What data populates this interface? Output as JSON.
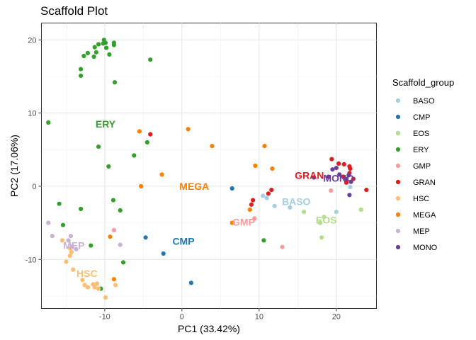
{
  "chart_data": {
    "type": "scatter",
    "title": "Scaffold Plot",
    "xlabel": "PC1 (33.42%)",
    "ylabel": "PC2 (17.06%)",
    "xlim": [
      -18.2,
      25.2
    ],
    "ylim": [
      -16.7,
      22.3
    ],
    "xticks": [
      -10,
      0,
      10,
      20
    ],
    "yticks": [
      -10,
      0,
      10,
      20
    ],
    "xtick_labels": [
      "-10",
      "0",
      "10",
      "20"
    ],
    "ytick_labels": [
      "-10",
      "0",
      "10",
      "20"
    ],
    "grid": true,
    "legend": {
      "title": "Scaffold_group",
      "position": "right"
    },
    "series": [
      {
        "name": "BASO",
        "color": "#a6cee3",
        "points": [
          [
            10.5,
            -1.3
          ],
          [
            11.0,
            -1.6
          ],
          [
            12.0,
            -2.7
          ],
          [
            14.0,
            -2.9
          ],
          [
            20.0,
            -3.5
          ],
          [
            21.8,
            -0.1
          ]
        ]
      },
      {
        "name": "CMP",
        "color": "#1f78b4",
        "points": [
          [
            6.5,
            -0.3
          ],
          [
            -4.7,
            -7.0
          ],
          [
            -2.4,
            -9.2
          ],
          [
            1.2,
            -13.2
          ]
        ]
      },
      {
        "name": "EOS",
        "color": "#b2df8a",
        "points": [
          [
            18.4,
            -4.2
          ],
          [
            15.8,
            -3.5
          ],
          [
            17.9,
            -5.0
          ],
          [
            18.1,
            -7.0
          ],
          [
            23.2,
            -3.2
          ]
        ]
      },
      {
        "name": "ERY",
        "color": "#33a02c",
        "points": [
          [
            -10.2,
            19.5
          ],
          [
            -10.1,
            20.0
          ],
          [
            -9.9,
            19.6
          ],
          [
            -8.8,
            19.6
          ],
          [
            -8.8,
            19.3
          ],
          [
            -10.8,
            19.4
          ],
          [
            -11.3,
            19.0
          ],
          [
            -9.8,
            18.9
          ],
          [
            -12.2,
            18.2
          ],
          [
            -11.1,
            18.3
          ],
          [
            -11.4,
            17.7
          ],
          [
            -12.7,
            17.8
          ],
          [
            -9.4,
            18.0
          ],
          [
            -13.1,
            16.0
          ],
          [
            -13.1,
            15.1
          ],
          [
            -4.1,
            17.3
          ],
          [
            -8.7,
            14.2
          ],
          [
            -17.3,
            8.7
          ],
          [
            -10.8,
            5.4
          ],
          [
            -4.5,
            6.0
          ],
          [
            -6.2,
            4.2
          ],
          [
            -9.5,
            2.7
          ],
          [
            -15.9,
            -2.4
          ],
          [
            -8.9,
            -1.9
          ],
          [
            -13.1,
            -3.1
          ],
          [
            -8.0,
            -3.3
          ],
          [
            -15.4,
            -5.3
          ],
          [
            -11.8,
            -8.1
          ],
          [
            -7.6,
            -10.4
          ],
          [
            -10.5,
            -14.0
          ],
          [
            10.6,
            -7.4
          ]
        ]
      },
      {
        "name": "GMP",
        "color": "#fb9a99",
        "points": [
          [
            -8.8,
            -6.0
          ],
          [
            9.4,
            -4.4
          ],
          [
            13.0,
            -8.3
          ],
          [
            19.3,
            -0.6
          ],
          [
            6.6,
            -5.0
          ]
        ]
      },
      {
        "name": "GRAN",
        "color": "#e31a1c",
        "points": [
          [
            -4.1,
            7.1
          ],
          [
            9.2,
            -1.9
          ],
          [
            11.2,
            -1.0
          ],
          [
            11.6,
            -0.5
          ],
          [
            19.4,
            3.7
          ],
          [
            20.3,
            3.1
          ],
          [
            21.0,
            3.0
          ],
          [
            21.7,
            2.7
          ],
          [
            21.8,
            2.4
          ],
          [
            21.7,
            1.8
          ],
          [
            20.9,
            1.3
          ],
          [
            21.3,
            0.5
          ],
          [
            23.9,
            -0.5
          ],
          [
            9.0,
            -2.5
          ],
          [
            22.2,
            1.0
          ]
        ]
      },
      {
        "name": "HSC",
        "color": "#fdbf6f",
        "points": [
          [
            -15.5,
            -7.4
          ],
          [
            -14.5,
            -8.5
          ],
          [
            -14.3,
            -9.0
          ],
          [
            -14.5,
            -9.5
          ],
          [
            -15.0,
            -10.3
          ],
          [
            -14.1,
            -11.4
          ],
          [
            -12.9,
            -12.8
          ],
          [
            -12.6,
            -13.5
          ],
          [
            -12.2,
            -13.8
          ],
          [
            -11.5,
            -13.4
          ],
          [
            -11.0,
            -13.3
          ],
          [
            -10.8,
            -14.0
          ],
          [
            -11.3,
            -13.8
          ],
          [
            -9.9,
            -15.2
          ],
          [
            -8.6,
            -13.5
          ]
        ]
      },
      {
        "name": "MEGA",
        "color": "#ff7f00",
        "points": [
          [
            -5.5,
            7.5
          ],
          [
            0.8,
            7.8
          ],
          [
            3.9,
            5.5
          ],
          [
            10.7,
            5.5
          ],
          [
            9.5,
            2.8
          ],
          [
            11.7,
            2.4
          ],
          [
            -2.6,
            1.6
          ],
          [
            -5.3,
            0.0
          ],
          [
            -9.3,
            -6.9
          ],
          [
            -8.8,
            -12.7
          ],
          [
            6.5,
            -5.0
          ],
          [
            8.8,
            -3.2
          ]
        ]
      },
      {
        "name": "MEP",
        "color": "#cab2d6",
        "points": [
          [
            -17.3,
            -5.0
          ],
          [
            -16.8,
            -6.8
          ],
          [
            -14.7,
            -7.4
          ],
          [
            -14.4,
            -6.8
          ],
          [
            -14.2,
            -8.2
          ],
          [
            -13.7,
            -8.6
          ],
          [
            -8.0,
            -8.0
          ]
        ]
      },
      {
        "name": "MONO",
        "color": "#6a3d9a",
        "points": [
          [
            20.0,
            2.5
          ],
          [
            19.5,
            2.3
          ],
          [
            20.4,
            1.6
          ],
          [
            21.9,
            0.6
          ],
          [
            21.6,
            1.5
          ],
          [
            21.3,
            1.0
          ],
          [
            19.0,
            1.3
          ],
          [
            17.1,
            1.2
          ],
          [
            21.7,
            -1.2
          ]
        ]
      }
    ],
    "annotations": [
      {
        "text": "ERY",
        "color": "#33a02c",
        "x": -9.9,
        "y": 8.5
      },
      {
        "text": "MEGA",
        "color": "#ff7f00",
        "x": 1.6,
        "y": 0.0
      },
      {
        "text": "GRAN",
        "color": "#e31a1c",
        "x": 16.5,
        "y": 1.5
      },
      {
        "text": "MONO",
        "color": "#6a3d9a",
        "x": 20.3,
        "y": 1.1
      },
      {
        "text": "BASO",
        "color": "#a6cee3",
        "x": 14.8,
        "y": -2.1
      },
      {
        "text": "EOS",
        "color": "#b2df8a",
        "x": 18.7,
        "y": -4.6
      },
      {
        "text": "GMP",
        "color": "#fb9a99",
        "x": 8.0,
        "y": -4.9
      },
      {
        "text": "CMP",
        "color": "#1f78b4",
        "x": 0.2,
        "y": -7.5
      },
      {
        "text": "MEP",
        "color": "#cab2d6",
        "x": -14.0,
        "y": -8.1
      },
      {
        "text": "HSC",
        "color": "#fdbf6f",
        "x": -12.3,
        "y": -11.9
      }
    ]
  }
}
